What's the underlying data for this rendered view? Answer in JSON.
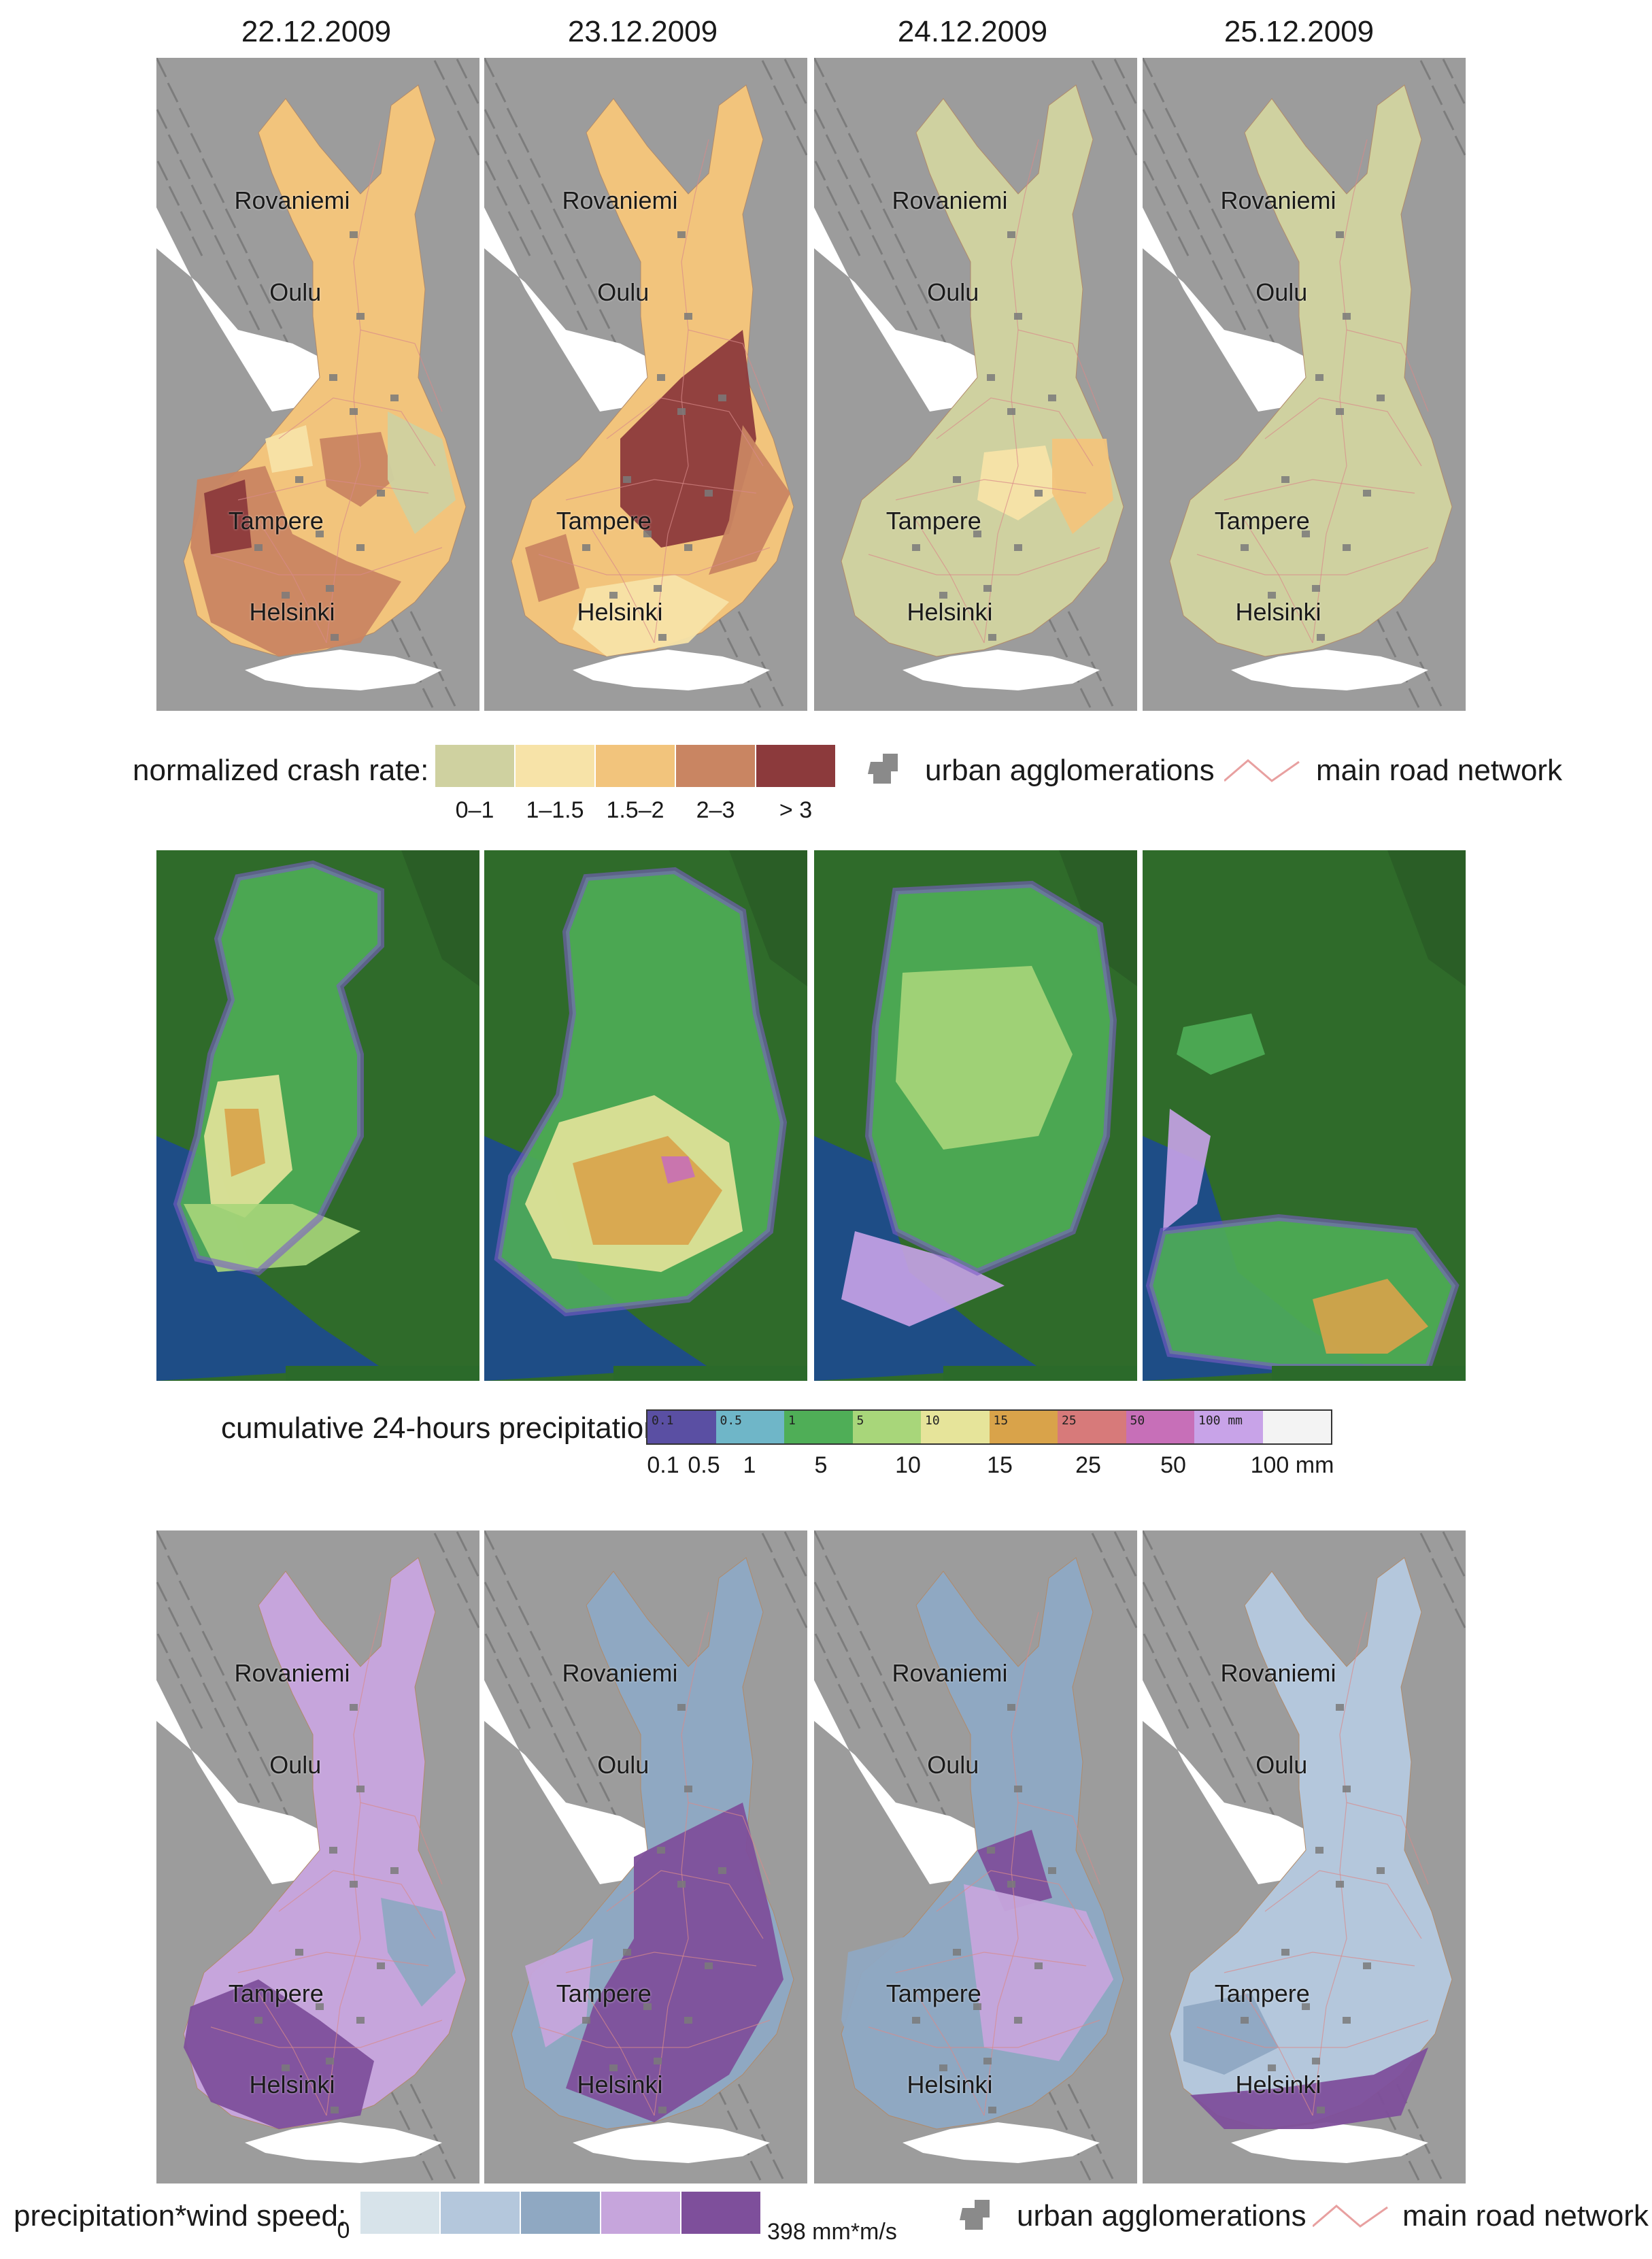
{
  "dates": [
    "22.12.2009",
    "23.12.2009",
    "24.12.2009",
    "25.12.2009"
  ],
  "cities": [
    "Rovaniemi",
    "Oulu",
    "Tampere",
    "Helsinki"
  ],
  "crash_legend": {
    "title": "normalized crash rate:",
    "classes": [
      {
        "label": "0–1",
        "color": "#cfd1a0"
      },
      {
        "label": "1–1.5",
        "color": "#f7e3a8"
      },
      {
        "label": "1.5–2",
        "color": "#f2c47c"
      },
      {
        "label": "2–3",
        "color": "#c98562"
      },
      {
        "label": "> 3",
        "color": "#8c3a3c"
      }
    ],
    "urban_label": "urban agglomerations",
    "road_label": "main road network"
  },
  "crash_panels": [
    "#f2c47c",
    "#f2c47c",
    "#cfd1a0",
    "#cfd1a0"
  ],
  "precip_legend": {
    "title": "cumulative 24-hours precipitation:",
    "bar_labels": [
      "0.1",
      "0.5",
      "1",
      "5",
      "10",
      "15",
      "25",
      "50",
      "100 mm"
    ],
    "ticks": [
      "0.1",
      "0.5",
      "1",
      "5",
      "10",
      "15",
      "25",
      "50",
      "100 mm"
    ],
    "colors": [
      "#5a4fa3",
      "#6fb6c8",
      "#4fae57",
      "#a8d67a",
      "#e6e49a",
      "#d9a34a",
      "#d77a7a",
      "#c76fb8",
      "#c8a3e8",
      "#f3f3f3"
    ]
  },
  "wind_legend": {
    "title": "precipitation*wind speed:",
    "min_label": "0",
    "max_label": "398 mm*m/s",
    "colors": [
      "#d7e3ea",
      "#b4c7dc",
      "#8fa8c2",
      "#c6a5dc",
      "#7e4f9b"
    ],
    "urban_label": "urban agglomerations",
    "road_label": "main road network"
  },
  "wind_panels": [
    "#c6a5dc",
    "#8fa8c2",
    "#8fa8c2",
    "#b4c7dc"
  ]
}
